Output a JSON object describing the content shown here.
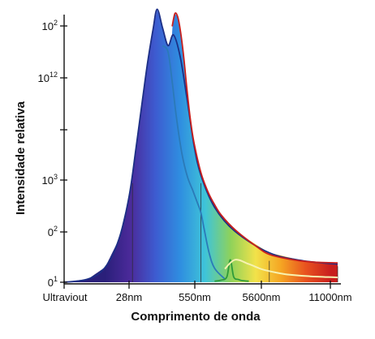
{
  "chart_data": {
    "type": "area",
    "title": "",
    "xlabel": "Comprimento de onda",
    "ylabel": "Intensidade relativa",
    "x_ticks": [
      "Ultraviout",
      "28nm",
      "550nm",
      "5600nm",
      "11000nm"
    ],
    "y_ticks": [
      {
        "base": "10",
        "exp": "2"
      },
      {
        "base": "10",
        "exp": "12"
      },
      {
        "base": "",
        "exp": ""
      },
      {
        "base": "10",
        "exp": "3"
      },
      {
        "base": "0",
        "exp": "2"
      },
      {
        "base": "0",
        "exp": "1"
      }
    ],
    "x_domain": [
      0,
      4
    ],
    "y_domain": [
      0,
      5
    ],
    "fill_gradient": [
      "#2a1f7a",
      "#4b2a9a",
      "#3d5bd0",
      "#2f8ee0",
      "#3fc4d8",
      "#8fd25a",
      "#f2e24a",
      "#f5a623",
      "#e8521f",
      "#c81e1e"
    ],
    "series": [
      {
        "color": "#1c2f86",
        "x": [
          0,
          0.35,
          0.6,
          0.8,
          0.95,
          1.05,
          1.15,
          1.22,
          1.3,
          1.36,
          1.44,
          1.52,
          1.6,
          1.7,
          1.8,
          1.9,
          2.0,
          2.2,
          2.5,
          3.0,
          3.5,
          4.0
        ],
        "y": [
          0.0,
          0.06,
          0.28,
          0.8,
          1.6,
          2.5,
          3.45,
          4.1,
          4.72,
          5.1,
          4.75,
          4.42,
          4.62,
          4.2,
          3.4,
          2.55,
          2.0,
          1.4,
          0.95,
          0.55,
          0.4,
          0.34
        ]
      },
      {
        "color": "#2b7ab8",
        "x": [
          1.44,
          1.52,
          1.58,
          1.64,
          1.72,
          1.8,
          1.88,
          1.95,
          2.0,
          2.05,
          2.12,
          2.2,
          2.35
        ],
        "y": [
          4.42,
          4.3,
          3.75,
          3.1,
          2.42,
          1.98,
          1.72,
          1.48,
          1.3,
          0.98,
          0.55,
          0.26,
          0.06
        ]
      },
      {
        "color": "#2e9a3a",
        "x": [
          2.2,
          2.3,
          2.38,
          2.43,
          2.48,
          2.55,
          2.6,
          2.7
        ],
        "y": [
          0.02,
          0.04,
          0.1,
          0.42,
          0.1,
          0.05,
          0.03,
          0.02
        ]
      },
      {
        "color": "#f7f2b0",
        "x": [
          2.35,
          2.5,
          2.7,
          2.9,
          3.1,
          3.3,
          3.6,
          4.0
        ],
        "y": [
          0.25,
          0.42,
          0.34,
          0.24,
          0.18,
          0.14,
          0.11,
          0.09
        ]
      },
      {
        "color": "#c8201e",
        "x": [
          1.58,
          1.62,
          1.66,
          1.7,
          1.75,
          1.8,
          1.85,
          1.9,
          2.0,
          2.1,
          2.2,
          2.3,
          2.5,
          2.8,
          3.0,
          3.3,
          3.6,
          4.0
        ],
        "y": [
          4.78,
          5.02,
          4.96,
          4.7,
          4.2,
          3.55,
          3.0,
          2.6,
          2.05,
          1.7,
          1.45,
          1.25,
          0.98,
          0.68,
          0.52,
          0.43,
          0.38,
          0.36
        ]
      }
    ],
    "markers": [
      {
        "x": 1.0,
        "y": 1.85
      },
      {
        "x": 2.0,
        "y": 1.85
      },
      {
        "x": 3.0,
        "y": 0.4
      },
      {
        "x": 4.0,
        "y": 0.3
      }
    ],
    "legend": "none",
    "grid": false
  }
}
